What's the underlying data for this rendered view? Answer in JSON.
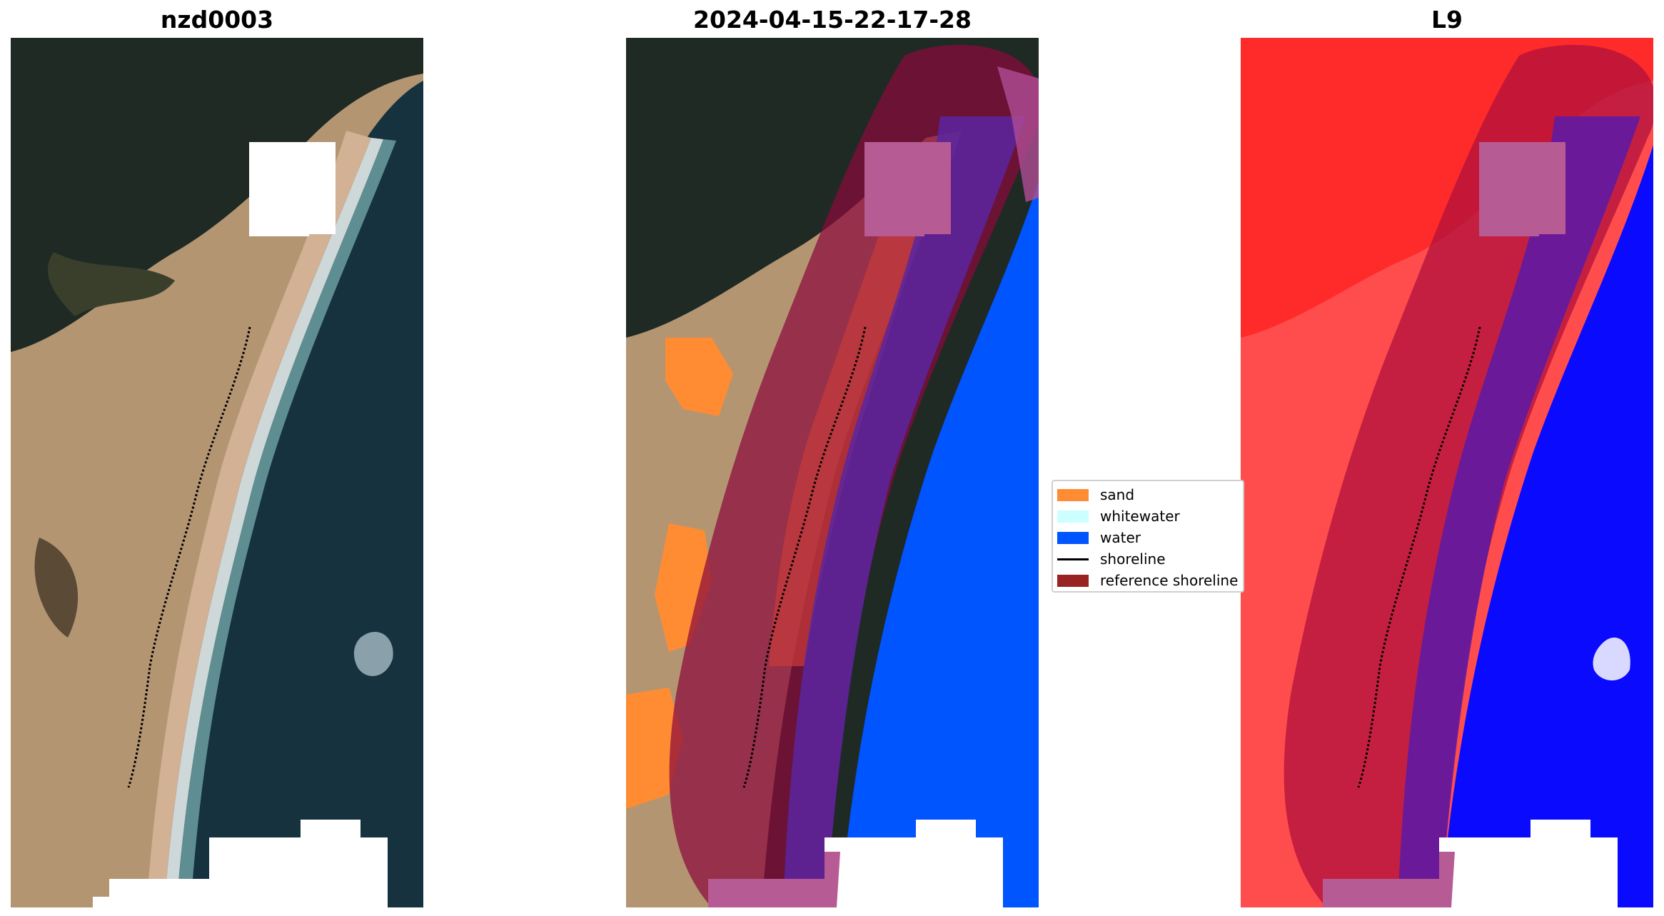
{
  "panels": [
    {
      "id": "rgb",
      "title": "nzd0003"
    },
    {
      "id": "classified",
      "title": "2024-04-15-22-17-28"
    },
    {
      "id": "mndwi",
      "title": "L9"
    }
  ],
  "legend": {
    "items": [
      {
        "label": "sand",
        "kind": "patch",
        "color": "#ff8c33"
      },
      {
        "label": "whitewater",
        "kind": "patch",
        "color": "#ccffff"
      },
      {
        "label": "water",
        "kind": "patch",
        "color": "#0055ff"
      },
      {
        "label": "shoreline",
        "kind": "line",
        "color": "#000000"
      },
      {
        "label": "reference shoreline",
        "kind": "patch",
        "color": "#992222"
      }
    ]
  },
  "colors": {
    "land_dark": "#1f2a24",
    "dunes": "#b49572",
    "ocean": "#16323f",
    "sand_class": "#ff8c33",
    "water_class": "#0055ff",
    "reference_buffer": "#8b0a3c",
    "cloud_mask": "#ffffff",
    "index_land": "#ff4d4d",
    "index_water": "#0a0aff"
  }
}
